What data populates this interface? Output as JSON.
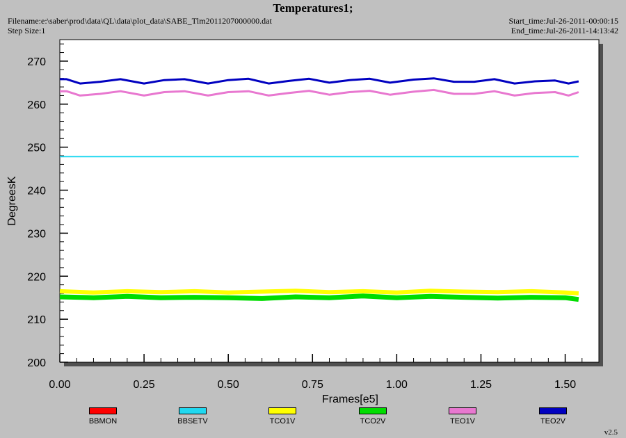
{
  "header": {
    "title": "Temperatures1;",
    "filename": "Filename:e:\\saber\\prod\\data\\QL\\data\\plot_data\\SABE_Tlm2011207000000.dat",
    "step_size": "Step Size:1",
    "start_time": "Start_time:Jul-26-2011-00:00:15",
    "end_time": "End_time:Jul-26-2011-14:13:42"
  },
  "version": "v2.5",
  "chart_data": {
    "type": "line",
    "title": "Temperatures1;",
    "xlabel": "Frames[e5]",
    "ylabel": "DegreesK",
    "xlim": [
      0.0,
      1.6
    ],
    "ylim": [
      200,
      275
    ],
    "x_ticks": [
      "0.00",
      "0.25",
      "0.50",
      "0.75",
      "1.00",
      "1.25",
      "1.50"
    ],
    "y_ticks": [
      "200",
      "210",
      "220",
      "230",
      "240",
      "250",
      "260",
      "270"
    ],
    "grid": false,
    "legend_position": "bottom",
    "series": [
      {
        "name": "BBMON",
        "color": "#ff0000",
        "x": [],
        "values": []
      },
      {
        "name": "BBSETV",
        "color": "#20d8f0",
        "x": [
          0.0,
          0.2,
          0.4,
          0.6,
          0.8,
          1.0,
          1.2,
          1.4,
          1.54
        ],
        "values": [
          247.8,
          247.8,
          247.8,
          247.8,
          247.8,
          247.8,
          247.8,
          247.8,
          247.8
        ]
      },
      {
        "name": "TCO1V",
        "color": "#ffff00",
        "x": [
          0.0,
          0.1,
          0.2,
          0.3,
          0.4,
          0.5,
          0.6,
          0.7,
          0.8,
          0.9,
          1.0,
          1.1,
          1.2,
          1.3,
          1.4,
          1.5,
          1.54
        ],
        "values": [
          216.5,
          216.2,
          216.5,
          216.3,
          216.5,
          216.2,
          216.4,
          216.6,
          216.3,
          216.5,
          216.2,
          216.6,
          216.4,
          216.3,
          216.5,
          216.2,
          216.0
        ]
      },
      {
        "name": "TCO2V",
        "color": "#00dd00",
        "x": [
          0.0,
          0.1,
          0.2,
          0.3,
          0.4,
          0.5,
          0.6,
          0.7,
          0.8,
          0.9,
          1.0,
          1.1,
          1.2,
          1.3,
          1.4,
          1.5,
          1.54
        ],
        "values": [
          215.2,
          215.0,
          215.3,
          215.0,
          215.1,
          215.0,
          214.8,
          215.2,
          215.0,
          215.4,
          215.0,
          215.3,
          215.1,
          214.9,
          215.1,
          215.0,
          214.6
        ]
      },
      {
        "name": "TEO1V",
        "color": "#e878d0",
        "x": [
          0.0,
          0.02,
          0.06,
          0.12,
          0.18,
          0.25,
          0.31,
          0.37,
          0.44,
          0.5,
          0.56,
          0.62,
          0.68,
          0.74,
          0.8,
          0.86,
          0.92,
          0.98,
          1.05,
          1.11,
          1.17,
          1.23,
          1.29,
          1.35,
          1.41,
          1.47,
          1.51,
          1.54
        ],
        "values": [
          263.0,
          263.0,
          262.0,
          262.4,
          263.0,
          262.0,
          262.8,
          263.0,
          262.0,
          262.8,
          263.0,
          262.0,
          262.6,
          263.1,
          262.2,
          262.8,
          263.1,
          262.2,
          262.9,
          263.3,
          262.4,
          262.4,
          263.0,
          262.0,
          262.6,
          262.8,
          262.0,
          262.8
        ]
      },
      {
        "name": "TEO2V",
        "color": "#0000c0",
        "x": [
          0.0,
          0.02,
          0.06,
          0.12,
          0.18,
          0.25,
          0.31,
          0.37,
          0.44,
          0.5,
          0.56,
          0.62,
          0.68,
          0.74,
          0.8,
          0.86,
          0.92,
          0.98,
          1.05,
          1.11,
          1.17,
          1.23,
          1.29,
          1.35,
          1.41,
          1.47,
          1.51,
          1.54
        ],
        "values": [
          265.8,
          265.8,
          264.8,
          265.2,
          265.8,
          264.8,
          265.6,
          265.8,
          264.8,
          265.6,
          265.9,
          264.8,
          265.4,
          265.9,
          265.0,
          265.6,
          265.9,
          265.0,
          265.7,
          266.0,
          265.2,
          265.2,
          265.8,
          264.8,
          265.3,
          265.5,
          264.8,
          265.3
        ]
      }
    ]
  }
}
